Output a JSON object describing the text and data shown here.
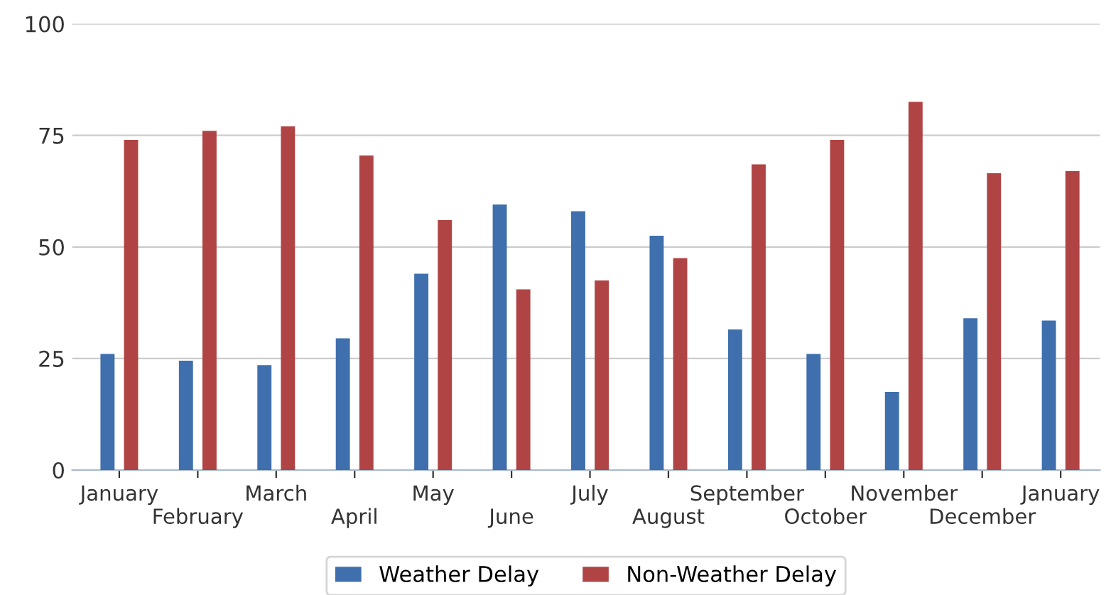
{
  "chart_data": {
    "type": "bar",
    "categories": [
      "January",
      "February",
      "March",
      "April",
      "May",
      "June",
      "July",
      "August",
      "September",
      "October",
      "November",
      "December",
      "January"
    ],
    "series": [
      {
        "name": "Weather Delay",
        "color": "#3f6fad",
        "values": [
          26,
          24.5,
          23.5,
          29.5,
          44,
          59.5,
          58,
          52.5,
          31.5,
          26,
          17.5,
          34,
          33.5
        ]
      },
      {
        "name": "Non-Weather Delay",
        "color": "#b04444",
        "values": [
          74,
          76,
          77,
          70.5,
          56,
          40.5,
          42.5,
          47.5,
          68.5,
          74,
          82.5,
          66.5,
          67
        ]
      }
    ],
    "ylim": [
      0,
      100
    ],
    "yticks": [
      0,
      25,
      50,
      75,
      100
    ],
    "grid": "y",
    "legend": "bottom"
  }
}
